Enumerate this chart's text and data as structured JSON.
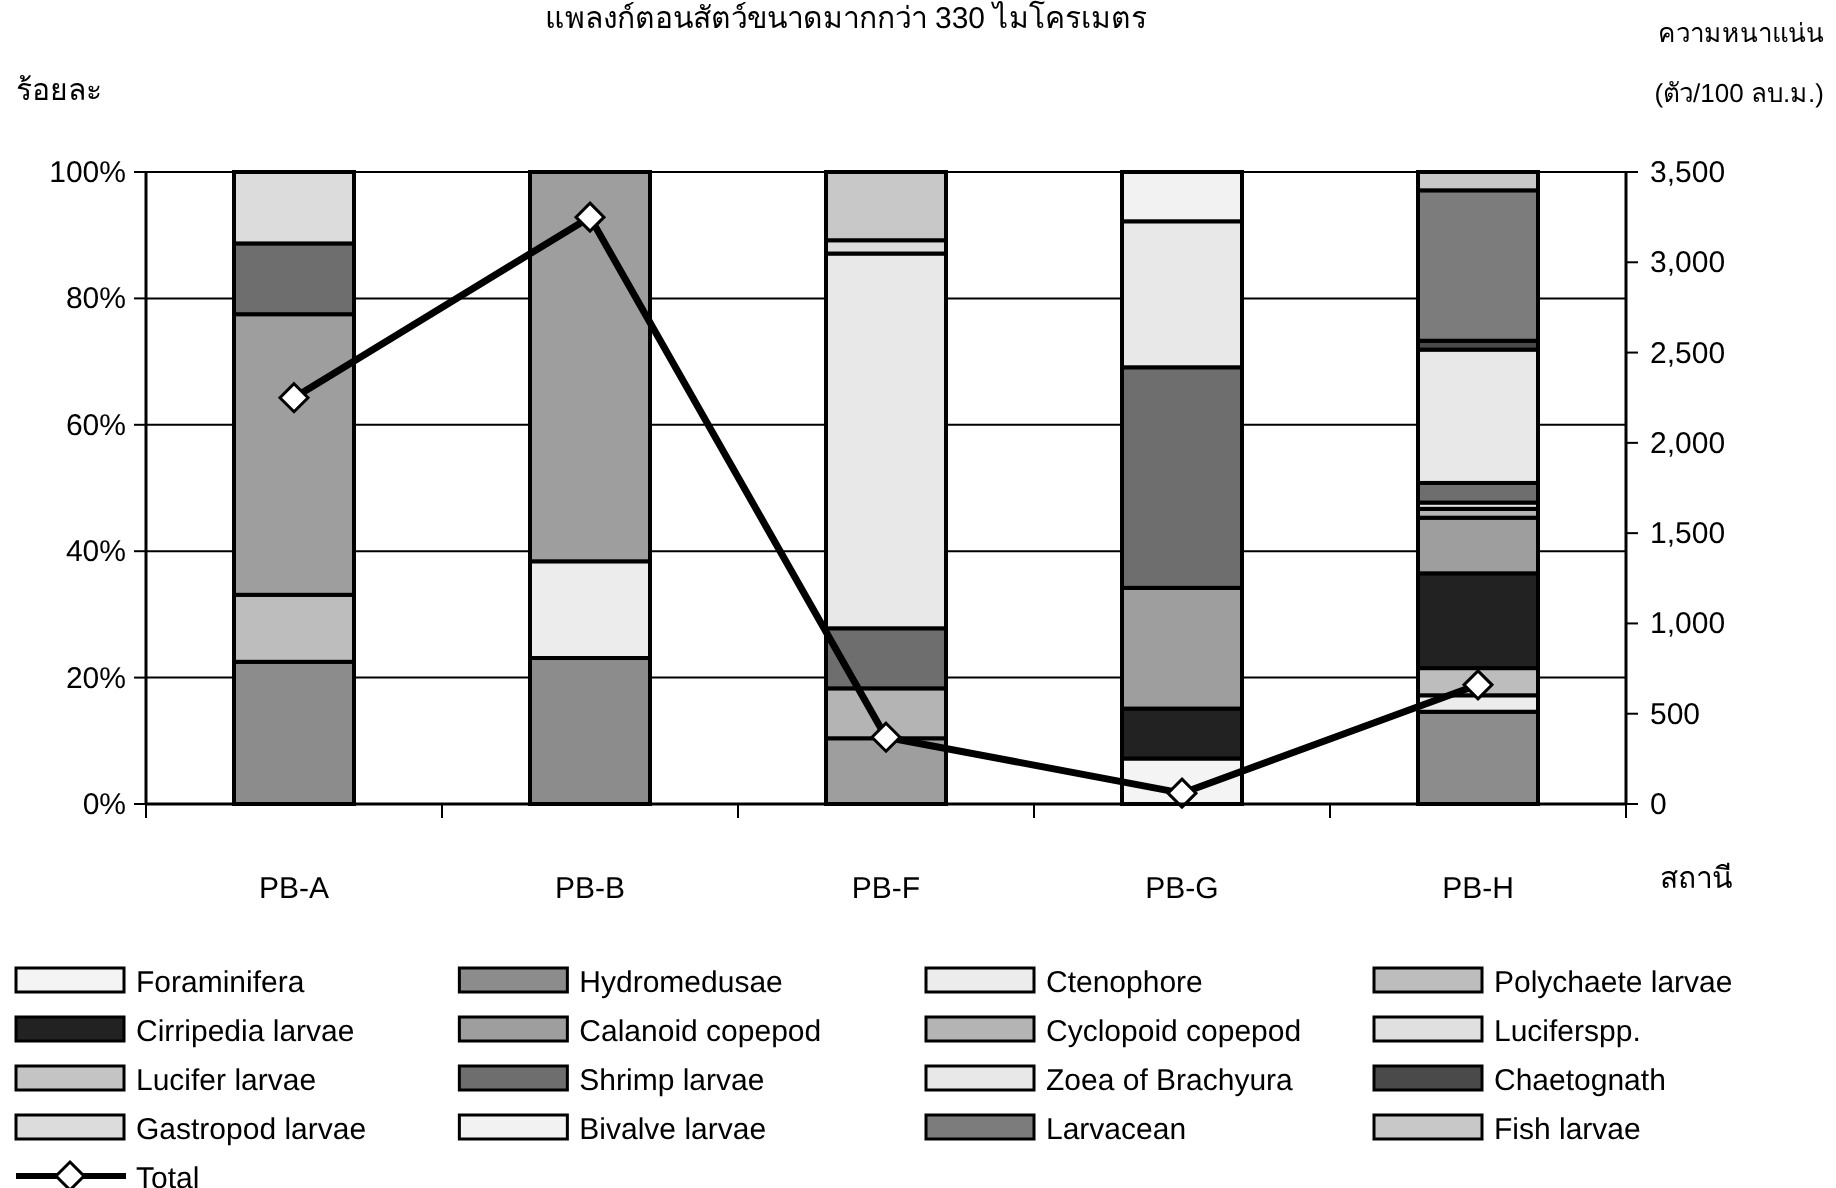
{
  "chart_data": {
    "type": "bar",
    "stacked": true,
    "title": "แพลงก์ตอนสัตว์ขนาดมากกว่า 330 ไมโครเมตร",
    "ylabel": "ร้อยละ",
    "y2label": "ความหนาแน่น\n(ตัว/100 ลบ.ม.)",
    "xlabel": "สถานี",
    "categories": [
      "PB-A",
      "PB-B",
      "PB-F",
      "PB-G",
      "PB-H"
    ],
    "ylim": [
      0,
      100
    ],
    "yticks": [
      {
        "value": 0,
        "label": "0%"
      },
      {
        "value": 20,
        "label": "20%"
      },
      {
        "value": 40,
        "label": "40%"
      },
      {
        "value": 60,
        "label": "60%"
      },
      {
        "value": 80,
        "label": "80%"
      },
      {
        "value": 100,
        "label": "100%"
      }
    ],
    "y2lim": [
      0,
      3500
    ],
    "y2ticks": [
      {
        "value": 0,
        "label": "0"
      },
      {
        "value": 500,
        "label": "500"
      },
      {
        "value": 1000,
        "label": "1,000"
      },
      {
        "value": 1500,
        "label": "1,500"
      },
      {
        "value": 2000,
        "label": "2,000"
      },
      {
        "value": 2500,
        "label": "2,500"
      },
      {
        "value": 3000,
        "label": "3,000"
      },
      {
        "value": 3500,
        "label": "3,500"
      }
    ],
    "grid": "y",
    "legend": "bottom",
    "series": [
      {
        "name": "Foraminifera",
        "color": "#f4f4f4",
        "values": [
          null,
          null,
          null,
          7.2,
          null
        ]
      },
      {
        "name": "Hydromedusae",
        "color": "#8c8c8c",
        "values": [
          22.5,
          23.1,
          null,
          null,
          14.6
        ]
      },
      {
        "name": "Ctenophore",
        "color": "#ececec",
        "values": [
          null,
          15.3,
          null,
          null,
          2.6
        ]
      },
      {
        "name": "Polychaete larvae",
        "color": "#bdbdbd",
        "values": [
          10.6,
          null,
          null,
          null,
          4.3
        ]
      },
      {
        "name": "Cirripedia larvae",
        "color": "#222222",
        "values": [
          null,
          null,
          null,
          7.9,
          15.0
        ]
      },
      {
        "name": "Calanoid copepod",
        "color": "#9e9e9e",
        "values": [
          44.4,
          61.6,
          10.4,
          19.1,
          8.8
        ]
      },
      {
        "name": "Cyclopoid copepod",
        "color": "#b4b4b4",
        "values": [
          null,
          null,
          7.9,
          null,
          1.4
        ]
      },
      {
        "name": "Luciferspp.",
        "color": "#e0e0e0",
        "values": [
          null,
          null,
          null,
          null,
          1.0
        ]
      },
      {
        "name": "Lucifer larvae",
        "color": "#c4c4c4",
        "values": [
          null,
          null,
          null,
          null,
          null
        ]
      },
      {
        "name": "Shrimp larvae",
        "color": "#6e6e6e",
        "values": [
          11.2,
          null,
          9.5,
          34.9,
          3.1
        ]
      },
      {
        "name": "Zoea of Brachyura",
        "color": "#e8e8e8",
        "values": [
          null,
          null,
          59.3,
          23.1,
          21.1
        ]
      },
      {
        "name": "Chaetognath",
        "color": "#4a4a4a",
        "values": [
          null,
          null,
          null,
          null,
          1.4
        ]
      },
      {
        "name": "Gastropod larvae",
        "color": "#dcdcdc",
        "values": [
          11.3,
          null,
          2.1,
          null,
          null
        ]
      },
      {
        "name": "Bivalve larvae",
        "color": "#f2f2f2",
        "values": [
          null,
          null,
          null,
          7.8,
          null
        ]
      },
      {
        "name": "Larvacean",
        "color": "#7c7c7c",
        "values": [
          null,
          null,
          null,
          null,
          23.8
        ]
      },
      {
        "name": "Fish larvae",
        "color": "#c8c8c8",
        "values": [
          null,
          null,
          10.8,
          null,
          2.9
        ]
      },
      {
        "name": "Total",
        "type": "line",
        "axis": "y2",
        "color": "#000000",
        "marker": "diamond",
        "values": [
          2250,
          3250,
          370,
          60,
          660
        ]
      }
    ]
  }
}
